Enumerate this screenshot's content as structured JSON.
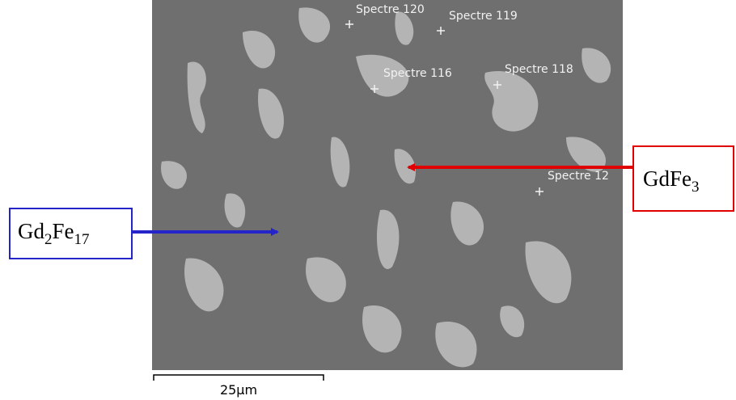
{
  "image": {
    "spectra": [
      "Spectre 120",
      "Spectre 119",
      "Spectre 116",
      "Spectre 118",
      "Spectre 12"
    ],
    "phases": [
      {
        "label_parts": [
          {
            "text": "GdFe"
          },
          {
            "sub": "3"
          }
        ]
      },
      {
        "label_parts": [
          {
            "text": "Gd"
          },
          {
            "sub": "2"
          },
          {
            "text": "Fe"
          },
          {
            "sub": "17"
          }
        ]
      }
    ],
    "scale_bar": "25µm"
  }
}
